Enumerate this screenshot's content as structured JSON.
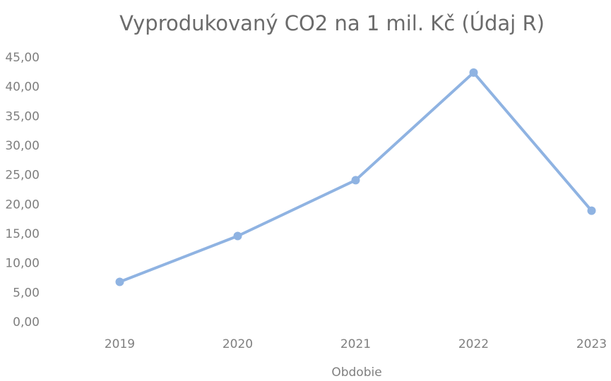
{
  "chart_data": {
    "type": "line",
    "title": "Vyprodukovaný CO2  na 1 mil. Kč (Údaj R)",
    "x_label": "Obdobie",
    "categories": [
      "2019",
      "2020",
      "2021",
      "2022",
      "2023"
    ],
    "values": [
      6.9,
      14.7,
      24.2,
      42.5,
      19.0
    ],
    "color": "#8fb3e2",
    "ylim": [
      0,
      45
    ],
    "yticks": [
      {
        "value": 0,
        "label": "0,00"
      },
      {
        "value": 5,
        "label": "5,00"
      },
      {
        "value": 10,
        "label": "10,00"
      },
      {
        "value": 15,
        "label": "15,00"
      },
      {
        "value": 20,
        "label": "20,00"
      },
      {
        "value": 25,
        "label": "25,00"
      },
      {
        "value": 30,
        "label": "30,00"
      },
      {
        "value": 35,
        "label": "35,00"
      },
      {
        "value": 40,
        "label": "40,00"
      },
      {
        "value": 45,
        "label": "45,00"
      }
    ],
    "grid": false
  }
}
